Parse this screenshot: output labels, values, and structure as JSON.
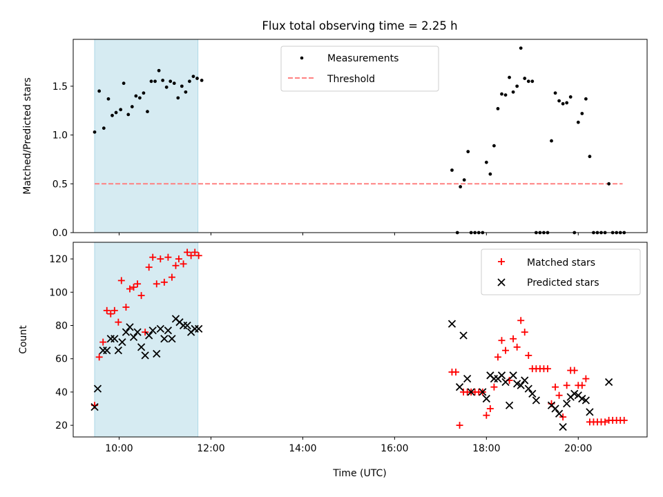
{
  "title": "Flux total observing time = 2.25 h",
  "xlabel": "Time (UTC)",
  "x_ticks": [
    "10:00",
    "12:00",
    "14:00",
    "16:00",
    "18:00",
    "20:00"
  ],
  "colors": {
    "shade": "#add8e6",
    "measurement": "#000000",
    "threshold": "#ff8080",
    "matched": "#ff0000",
    "predicted": "#000000"
  },
  "chart_data": [
    {
      "type": "scatter",
      "ylabel": "Matched/Predicted stars",
      "xlim": [
        "09:00",
        "21:30"
      ],
      "ylim": [
        0,
        1.98
      ],
      "y_ticks": [
        "0.0",
        "0.5",
        "1.0",
        "1.5"
      ],
      "shaded_interval": [
        "09:28",
        "11:43"
      ],
      "legend": {
        "placement": "top-center",
        "entries": [
          "Measurements",
          "Threshold"
        ]
      },
      "threshold": {
        "name": "Threshold",
        "y": 0.5,
        "x_range": [
          "09:28",
          "20:58"
        ]
      },
      "series": [
        {
          "name": "Measurements",
          "points": [
            [
              "09:28",
              1.03
            ],
            [
              "09:34",
              1.45
            ],
            [
              "09:40",
              1.07
            ],
            [
              "09:46",
              1.37
            ],
            [
              "09:51",
              1.2
            ],
            [
              "09:56",
              1.23
            ],
            [
              "10:02",
              1.26
            ],
            [
              "10:06",
              1.53
            ],
            [
              "10:12",
              1.21
            ],
            [
              "10:17",
              1.29
            ],
            [
              "10:22",
              1.4
            ],
            [
              "10:27",
              1.38
            ],
            [
              "10:32",
              1.43
            ],
            [
              "10:37",
              1.24
            ],
            [
              "10:42",
              1.55
            ],
            [
              "10:47",
              1.55
            ],
            [
              "10:52",
              1.66
            ],
            [
              "10:57",
              1.56
            ],
            [
              "11:02",
              1.49
            ],
            [
              "11:07",
              1.55
            ],
            [
              "11:12",
              1.53
            ],
            [
              "11:17",
              1.38
            ],
            [
              "11:22",
              1.5
            ],
            [
              "11:27",
              1.44
            ],
            [
              "11:32",
              1.55
            ],
            [
              "11:37",
              1.6
            ],
            [
              "11:42",
              1.58
            ],
            [
              "11:48",
              1.56
            ],
            [
              "17:15",
              0.64
            ],
            [
              "17:22",
              0.0
            ],
            [
              "17:26",
              0.47
            ],
            [
              "17:31",
              0.54
            ],
            [
              "17:36",
              0.83
            ],
            [
              "17:40",
              0.0
            ],
            [
              "17:45",
              0.0
            ],
            [
              "17:50",
              0.0
            ],
            [
              "17:55",
              0.0
            ],
            [
              "18:00",
              0.72
            ],
            [
              "18:05",
              0.6
            ],
            [
              "18:10",
              0.89
            ],
            [
              "18:15",
              1.27
            ],
            [
              "18:20",
              1.42
            ],
            [
              "18:25",
              1.41
            ],
            [
              "18:30",
              1.59
            ],
            [
              "18:35",
              1.44
            ],
            [
              "18:40",
              1.5
            ],
            [
              "18:45",
              1.89
            ],
            [
              "18:50",
              1.58
            ],
            [
              "18:55",
              1.55
            ],
            [
              "19:00",
              1.55
            ],
            [
              "19:05",
              0.0
            ],
            [
              "19:10",
              0.0
            ],
            [
              "19:15",
              0.0
            ],
            [
              "19:20",
              0.0
            ],
            [
              "19:25",
              0.94
            ],
            [
              "19:30",
              1.43
            ],
            [
              "19:35",
              1.35
            ],
            [
              "19:40",
              1.32
            ],
            [
              "19:45",
              1.33
            ],
            [
              "19:50",
              1.39
            ],
            [
              "19:55",
              0.0
            ],
            [
              "20:00",
              1.13
            ],
            [
              "20:05",
              1.22
            ],
            [
              "20:10",
              1.37
            ],
            [
              "20:15",
              0.78
            ],
            [
              "20:20",
              0.0
            ],
            [
              "20:25",
              0.0
            ],
            [
              "20:30",
              0.0
            ],
            [
              "20:35",
              0.0
            ],
            [
              "20:40",
              0.5
            ],
            [
              "20:45",
              0.0
            ],
            [
              "20:50",
              0.0
            ],
            [
              "20:55",
              0.0
            ],
            [
              "21:00",
              0.0
            ]
          ]
        }
      ]
    },
    {
      "type": "scatter",
      "ylabel": "Count",
      "xlim": [
        "09:00",
        "21:30"
      ],
      "ylim": [
        13,
        130
      ],
      "y_ticks": [
        "20",
        "40",
        "60",
        "80",
        "100",
        "120"
      ],
      "shaded_interval": [
        "09:28",
        "11:43"
      ],
      "legend": {
        "placement": "top-right",
        "entries": [
          "Matched stars",
          "Predicted stars"
        ]
      },
      "series": [
        {
          "name": "Matched stars",
          "marker": "plus",
          "points": [
            [
              "09:28",
              32
            ],
            [
              "09:34",
              61
            ],
            [
              "09:39",
              70
            ],
            [
              "09:44",
              89
            ],
            [
              "09:49",
              87
            ],
            [
              "09:54",
              89
            ],
            [
              "09:59",
              82
            ],
            [
              "10:03",
              107
            ],
            [
              "10:09",
              91
            ],
            [
              "10:14",
              102
            ],
            [
              "10:19",
              103
            ],
            [
              "10:24",
              105
            ],
            [
              "10:29",
              98
            ],
            [
              "10:34",
              76
            ],
            [
              "10:39",
              115
            ],
            [
              "10:44",
              121
            ],
            [
              "10:49",
              105
            ],
            [
              "10:54",
              120
            ],
            [
              "10:59",
              106
            ],
            [
              "11:04",
              121
            ],
            [
              "11:09",
              109
            ],
            [
              "11:14",
              116
            ],
            [
              "11:18",
              120
            ],
            [
              "11:24",
              117
            ],
            [
              "11:29",
              124
            ],
            [
              "11:34",
              122
            ],
            [
              "11:39",
              124
            ],
            [
              "11:44",
              122
            ],
            [
              "17:15",
              52
            ],
            [
              "17:20",
              52
            ],
            [
              "17:25",
              20
            ],
            [
              "17:30",
              40
            ],
            [
              "17:35",
              40
            ],
            [
              "17:40",
              40
            ],
            [
              "17:45",
              40
            ],
            [
              "17:50",
              40
            ],
            [
              "17:55",
              40
            ],
            [
              "18:00",
              26
            ],
            [
              "18:05",
              30
            ],
            [
              "18:10",
              43
            ],
            [
              "18:15",
              61
            ],
            [
              "18:20",
              71
            ],
            [
              "18:25",
              65
            ],
            [
              "18:30",
              47
            ],
            [
              "18:35",
              72
            ],
            [
              "18:40",
              67
            ],
            [
              "18:45",
              83
            ],
            [
              "18:50",
              76
            ],
            [
              "18:55",
              62
            ],
            [
              "19:00",
              54
            ],
            [
              "19:05",
              54
            ],
            [
              "19:10",
              54
            ],
            [
              "19:15",
              54
            ],
            [
              "19:20",
              54
            ],
            [
              "19:25",
              33
            ],
            [
              "19:30",
              43
            ],
            [
              "19:35",
              38
            ],
            [
              "19:40",
              25
            ],
            [
              "19:45",
              44
            ],
            [
              "19:50",
              53
            ],
            [
              "19:55",
              53
            ],
            [
              "20:00",
              44
            ],
            [
              "20:05",
              44
            ],
            [
              "20:10",
              48
            ],
            [
              "20:15",
              22
            ],
            [
              "20:20",
              22
            ],
            [
              "20:25",
              22
            ],
            [
              "20:30",
              22
            ],
            [
              "20:35",
              22
            ],
            [
              "20:40",
              23
            ],
            [
              "20:45",
              23
            ],
            [
              "20:50",
              23
            ],
            [
              "20:55",
              23
            ],
            [
              "21:00",
              23
            ]
          ]
        },
        {
          "name": "Predicted stars",
          "marker": "x",
          "points": [
            [
              "09:28",
              31
            ],
            [
              "09:32",
              42
            ],
            [
              "09:39",
              65
            ],
            [
              "09:44",
              65
            ],
            [
              "09:49",
              72
            ],
            [
              "09:54",
              72
            ],
            [
              "09:59",
              65
            ],
            [
              "10:04",
              70
            ],
            [
              "10:09",
              76
            ],
            [
              "10:14",
              79
            ],
            [
              "10:19",
              73
            ],
            [
              "10:24",
              76
            ],
            [
              "10:29",
              67
            ],
            [
              "10:34",
              62
            ],
            [
              "10:39",
              74
            ],
            [
              "10:44",
              77
            ],
            [
              "10:49",
              63
            ],
            [
              "10:54",
              78
            ],
            [
              "10:59",
              72
            ],
            [
              "11:04",
              77
            ],
            [
              "11:09",
              72
            ],
            [
              "11:14",
              84
            ],
            [
              "11:19",
              82
            ],
            [
              "11:24",
              80
            ],
            [
              "11:29",
              80
            ],
            [
              "11:34",
              76
            ],
            [
              "11:39",
              78
            ],
            [
              "11:44",
              78
            ],
            [
              "17:15",
              81
            ],
            [
              "17:25",
              43
            ],
            [
              "17:30",
              74
            ],
            [
              "17:35",
              48
            ],
            [
              "17:40",
              40
            ],
            [
              "17:55",
              40
            ],
            [
              "18:00",
              36
            ],
            [
              "18:05",
              50
            ],
            [
              "18:10",
              48
            ],
            [
              "18:15",
              48
            ],
            [
              "18:20",
              50
            ],
            [
              "18:25",
              46
            ],
            [
              "18:30",
              32
            ],
            [
              "18:35",
              50
            ],
            [
              "18:40",
              45
            ],
            [
              "18:45",
              44
            ],
            [
              "18:50",
              47
            ],
            [
              "18:55",
              42
            ],
            [
              "19:00",
              39
            ],
            [
              "19:05",
              35
            ],
            [
              "19:25",
              32
            ],
            [
              "19:30",
              30
            ],
            [
              "19:35",
              27
            ],
            [
              "19:40",
              19
            ],
            [
              "19:45",
              33
            ],
            [
              "19:50",
              37
            ],
            [
              "19:55",
              39
            ],
            [
              "20:00",
              38
            ],
            [
              "20:05",
              36
            ],
            [
              "20:10",
              35
            ],
            [
              "20:15",
              28
            ],
            [
              "20:40",
              46
            ]
          ]
        }
      ]
    }
  ]
}
